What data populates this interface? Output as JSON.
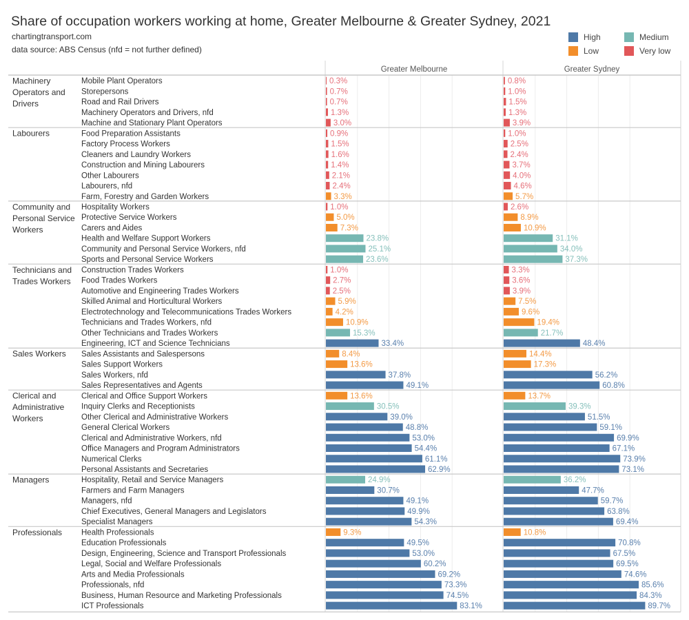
{
  "header": {
    "title": "Share of occupation workers working at home, Greater Melbourne & Greater Sydney, 2021",
    "site": "chartingtransport.com",
    "source": "data source: ABS Census (nfd = not further defined)"
  },
  "legend": [
    {
      "key": "H",
      "label": "High",
      "color": "#4e79a7"
    },
    {
      "key": "M",
      "label": "Medium",
      "color": "#76b7b2"
    },
    {
      "key": "L",
      "label": "Low",
      "color": "#f28e2b"
    },
    {
      "key": "V",
      "label": "Very low",
      "color": "#e15759"
    }
  ],
  "chart_data": {
    "type": "bar",
    "orientation": "horizontal",
    "title": "Share of occupation workers working at home, Greater Melbourne & Greater Sydney, 2021",
    "panels": [
      "Greater Melbourne",
      "Greater Sydney"
    ],
    "xlim": [
      0,
      100
    ],
    "unit": "%",
    "grid": true,
    "legend_position": "top-right",
    "groups": [
      {
        "label": [
          "Machinery",
          "Operators and",
          "Drivers"
        ],
        "rows": [
          {
            "name": "Mobile Plant Operators",
            "level": "V",
            "values": [
              0.3,
              0.8
            ]
          },
          {
            "name": "Storepersons",
            "level": "V",
            "values": [
              0.7,
              1.0
            ]
          },
          {
            "name": "Road and Rail Drivers",
            "level": "V",
            "values": [
              0.7,
              1.5
            ]
          },
          {
            "name": "Machinery Operators and Drivers, nfd",
            "level": "V",
            "values": [
              1.3,
              1.3
            ]
          },
          {
            "name": "Machine and Stationary Plant Operators",
            "level": "V",
            "values": [
              3.0,
              3.9
            ]
          }
        ]
      },
      {
        "label": [
          "Labourers"
        ],
        "rows": [
          {
            "name": "Food Preparation Assistants",
            "level": "V",
            "values": [
              0.9,
              1.0
            ]
          },
          {
            "name": "Factory Process Workers",
            "level": "V",
            "values": [
              1.5,
              2.5
            ]
          },
          {
            "name": "Cleaners and Laundry Workers",
            "level": "V",
            "values": [
              1.6,
              2.4
            ]
          },
          {
            "name": "Construction and Mining Labourers",
            "level": "V",
            "values": [
              1.4,
              3.7
            ]
          },
          {
            "name": "Other Labourers",
            "level": "V",
            "values": [
              2.1,
              4.0
            ]
          },
          {
            "name": "Labourers, nfd",
            "level": "V",
            "values": [
              2.4,
              4.6
            ]
          },
          {
            "name": "Farm, Forestry and Garden Workers",
            "level": "L",
            "values": [
              3.3,
              5.7
            ]
          }
        ]
      },
      {
        "label": [
          "Community and",
          "Personal Service",
          "Workers"
        ],
        "rows": [
          {
            "name": "Hospitality Workers",
            "level": "V",
            "values": [
              1.0,
              2.6
            ]
          },
          {
            "name": "Protective Service Workers",
            "level": "L",
            "values": [
              5.0,
              8.9
            ]
          },
          {
            "name": "Carers and Aides",
            "level": "L",
            "values": [
              7.3,
              10.9
            ]
          },
          {
            "name": "Health and Welfare Support Workers",
            "level": "M",
            "values": [
              23.8,
              31.1
            ]
          },
          {
            "name": "Community and Personal Service Workers, nfd",
            "level": "M",
            "values": [
              25.1,
              34.0
            ]
          },
          {
            "name": "Sports and Personal Service Workers",
            "level": "M",
            "values": [
              23.6,
              37.3
            ]
          }
        ]
      },
      {
        "label": [
          "Technicians and",
          "Trades Workers"
        ],
        "rows": [
          {
            "name": "Construction Trades Workers",
            "level": "V",
            "values": [
              1.0,
              3.3
            ]
          },
          {
            "name": "Food Trades Workers",
            "level": "V",
            "values": [
              2.7,
              3.6
            ]
          },
          {
            "name": "Automotive and Engineering Trades Workers",
            "level": "V",
            "values": [
              2.5,
              3.9
            ]
          },
          {
            "name": "Skilled Animal and Horticultural Workers",
            "level": "L",
            "values": [
              5.9,
              7.5
            ]
          },
          {
            "name": "Electrotechnology and Telecommunications Trades Workers",
            "level": "L",
            "values": [
              4.2,
              9.6
            ]
          },
          {
            "name": "Technicians and Trades Workers, nfd",
            "level": "L",
            "values": [
              10.9,
              19.4
            ]
          },
          {
            "name": "Other Technicians and Trades Workers",
            "level": "M",
            "values": [
              15.3,
              21.7
            ]
          },
          {
            "name": "Engineering, ICT and Science Technicians",
            "level": "H",
            "values": [
              33.4,
              48.4
            ]
          }
        ]
      },
      {
        "label": [
          "Sales Workers"
        ],
        "rows": [
          {
            "name": "Sales Assistants and Salespersons",
            "level": "L",
            "values": [
              8.4,
              14.4
            ]
          },
          {
            "name": "Sales Support Workers",
            "level": "L",
            "values": [
              13.6,
              17.3
            ]
          },
          {
            "name": "Sales Workers, nfd",
            "level": "H",
            "values": [
              37.8,
              56.2
            ]
          },
          {
            "name": "Sales Representatives and Agents",
            "level": "H",
            "values": [
              49.1,
              60.8
            ]
          }
        ]
      },
      {
        "label": [
          "Clerical and",
          "Administrative",
          "Workers"
        ],
        "rows": [
          {
            "name": "Clerical and Office Support Workers",
            "level": "L",
            "values": [
              13.6,
              13.7
            ]
          },
          {
            "name": "Inquiry Clerks and Receptionists",
            "level": "M",
            "values": [
              30.5,
              39.3
            ]
          },
          {
            "name": "Other Clerical and Administrative Workers",
            "level": "H",
            "values": [
              39.0,
              51.5
            ]
          },
          {
            "name": "General Clerical Workers",
            "level": "H",
            "values": [
              48.8,
              59.1
            ]
          },
          {
            "name": "Clerical and Administrative Workers, nfd",
            "level": "H",
            "values": [
              53.0,
              69.9
            ]
          },
          {
            "name": "Office Managers and Program Administrators",
            "level": "H",
            "values": [
              54.4,
              67.1
            ]
          },
          {
            "name": "Numerical Clerks",
            "level": "H",
            "values": [
              61.1,
              73.9
            ]
          },
          {
            "name": "Personal Assistants and Secretaries",
            "level": "H",
            "values": [
              62.9,
              73.1
            ]
          }
        ]
      },
      {
        "label": [
          "Managers"
        ],
        "rows": [
          {
            "name": "Hospitality, Retail and Service Managers",
            "level": "M",
            "values": [
              24.9,
              36.2
            ]
          },
          {
            "name": "Farmers and Farm Managers",
            "level": "H",
            "values": [
              30.7,
              47.7
            ]
          },
          {
            "name": "Managers, nfd",
            "level": "H",
            "values": [
              49.1,
              59.7
            ]
          },
          {
            "name": "Chief Executives, General Managers and Legislators",
            "level": "H",
            "values": [
              49.9,
              63.8
            ]
          },
          {
            "name": "Specialist Managers",
            "level": "H",
            "values": [
              54.3,
              69.4
            ]
          }
        ]
      },
      {
        "label": [
          "Professionals"
        ],
        "rows": [
          {
            "name": "Health Professionals",
            "level": "L",
            "values": [
              9.3,
              10.8
            ]
          },
          {
            "name": "Education Professionals",
            "level": "H",
            "values": [
              49.5,
              70.8
            ]
          },
          {
            "name": "Design, Engineering, Science and Transport Professionals",
            "level": "H",
            "values": [
              53.0,
              67.5
            ]
          },
          {
            "name": "Legal, Social and Welfare Professionals",
            "level": "H",
            "values": [
              60.2,
              69.5
            ]
          },
          {
            "name": "Arts and Media Professionals",
            "level": "H",
            "values": [
              69.2,
              74.6
            ]
          },
          {
            "name": "Professionals, nfd",
            "level": "H",
            "values": [
              73.3,
              85.6
            ]
          },
          {
            "name": "Business, Human Resource and Marketing Professionals",
            "level": "H",
            "values": [
              74.5,
              84.3
            ]
          },
          {
            "name": "ICT Professionals",
            "level": "H",
            "values": [
              83.1,
              89.7
            ]
          }
        ]
      }
    ]
  }
}
